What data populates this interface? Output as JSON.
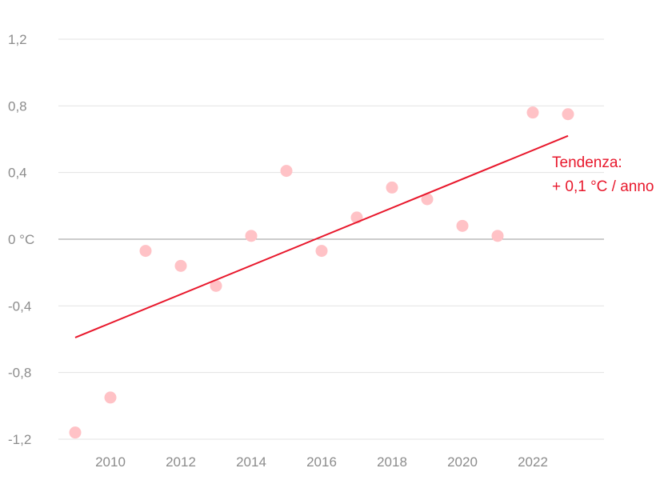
{
  "chart_data": {
    "type": "scatter",
    "title": "",
    "xlabel": "",
    "ylabel": "",
    "xlim": [
      2008.2,
      2023.95
    ],
    "ylim": [
      -1.2,
      1.2
    ],
    "grid": true,
    "x_ticks": [
      2010,
      2012,
      2014,
      2016,
      2018,
      2020,
      2022
    ],
    "x_tick_labels": [
      "2010",
      "2012",
      "2014",
      "2016",
      "2018",
      "2020",
      "2022"
    ],
    "y_ticks": [
      1.2,
      0.8,
      0.4,
      0,
      -0.4,
      -0.8,
      -1.2
    ],
    "y_tick_labels": [
      "1,2",
      "0,8",
      "0,4",
      "0 °C",
      "-0,4",
      "-0,8",
      "-1,2"
    ],
    "x": [
      2009,
      2010,
      2011,
      2012,
      2013,
      2014,
      2015,
      2016,
      2017,
      2018,
      2019,
      2020,
      2021,
      2022,
      2023
    ],
    "values": [
      -1.16,
      -0.95,
      -0.07,
      -0.16,
      -0.28,
      0.02,
      0.41,
      -0.07,
      0.13,
      0.31,
      0.24,
      0.08,
      0.02,
      0.76,
      0.75
    ],
    "trend": {
      "x": [
        2009,
        2023
      ],
      "y": [
        -0.59,
        0.62
      ]
    },
    "annotation": [
      "Tendenza:",
      "+ 0,1 °C / anno"
    ],
    "colors": {
      "points": "#ffc2c6",
      "trend": "#e8182c",
      "grid": "#e3e3e3",
      "zero_line": "#9a9a9a",
      "ticks": "#8c8c8c"
    }
  }
}
